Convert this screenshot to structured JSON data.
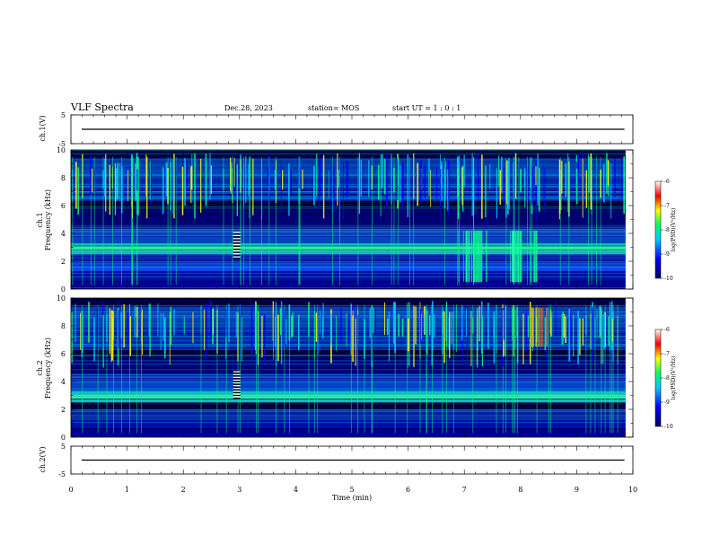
{
  "header": {
    "title": "VLF Spectra",
    "date": "Dec.28, 2023",
    "station": "station= MOS",
    "start": "start  UT =  1 : 0  : 1"
  },
  "chart_data": [
    {
      "type": "line",
      "ylabel": "ch.1(V)",
      "ylim": [
        -5,
        5
      ],
      "yticks": [
        "5",
        "-5"
      ],
      "xlim": [
        0,
        10
      ],
      "series": [
        {
          "values_constant": 0
        }
      ]
    },
    {
      "type": "heatmap",
      "ylabel": "ch.1\nFrequency (kHz)",
      "ylabel_line1": "ch.1",
      "ylabel_line2": "Frequency (kHz)",
      "ylim": [
        0,
        10
      ],
      "yticks": [
        "0",
        "2",
        "4",
        "6",
        "8",
        "10"
      ],
      "xlim": [
        0,
        10
      ],
      "colorbar": {
        "label": "log(PSD)(V²/Hz)",
        "ticks": [
          "-6",
          "-7",
          "-8",
          "-9",
          "-10"
        ],
        "range": [
          -10,
          -6
        ]
      },
      "features": {
        "broadband_bursts_min": [
          6.9,
          7.8
        ],
        "bright_band_khz": [
          2.6,
          3.2
        ],
        "low_band_khz": [
          1.4,
          1.8
        ],
        "dark_gap_khz": [
          5.8,
          6.3
        ],
        "spike_block_min": 2.95
      }
    },
    {
      "type": "heatmap",
      "ylabel_line1": "ch.2",
      "ylabel_line2": "Frequency (kHz)",
      "ylim": [
        0,
        10
      ],
      "yticks": [
        "0",
        "2",
        "4",
        "6",
        "8",
        "10"
      ],
      "xlim": [
        0,
        10
      ],
      "colorbar": {
        "label": "log(PSD)(V²/Hz)",
        "ticks": [
          "-6",
          "-7",
          "-8",
          "-9",
          "-10"
        ],
        "range": [
          -10,
          -6
        ]
      }
    },
    {
      "type": "line",
      "ylabel": "ch.2(V)",
      "ylim": [
        -5,
        5
      ],
      "yticks": [
        "5",
        "-5"
      ],
      "xlim": [
        0,
        10
      ],
      "xlabel": "Time (min)",
      "xticks": [
        "0",
        "1",
        "2",
        "3",
        "4",
        "5",
        "6",
        "7",
        "8",
        "9",
        "10"
      ],
      "series": [
        {
          "values_constant": 0
        }
      ]
    }
  ],
  "colors": {
    "background": "#ffffff",
    "plot_bg": "#00003c",
    "scale": [
      "#000080",
      "#0000ff",
      "#00c8ff",
      "#00ff80",
      "#ffff00",
      "#ff0000",
      "#ffffff"
    ]
  }
}
